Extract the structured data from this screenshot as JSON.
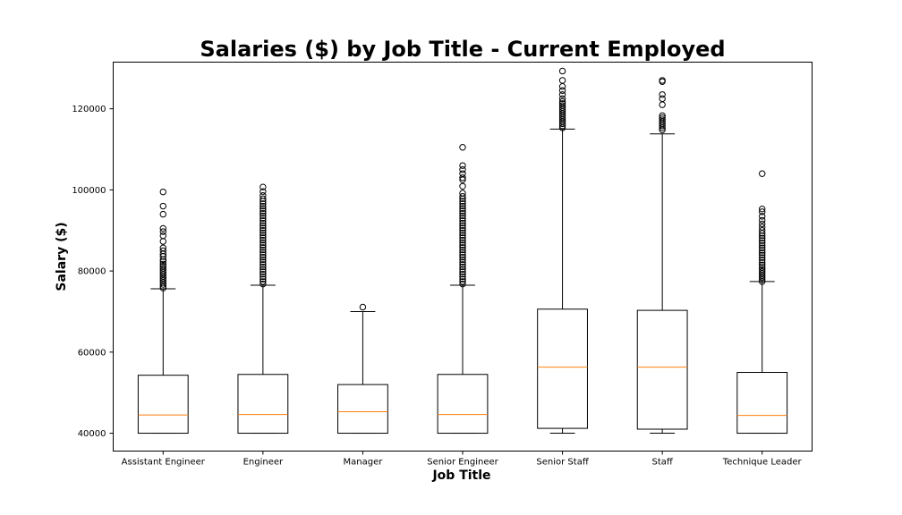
{
  "chart_data": {
    "type": "box",
    "title": "Salaries ($) by Job Title - Current Employed",
    "xlabel": "Job Title",
    "ylabel": "Salary ($)",
    "ylim": [
      35600,
      131500
    ],
    "yticks": [
      {
        "value": 40000,
        "label": "40000"
      },
      {
        "value": 60000,
        "label": "60000"
      },
      {
        "value": 80000,
        "label": "80000"
      },
      {
        "value": 100000,
        "label": "100000"
      },
      {
        "value": 120000,
        "label": "120000"
      }
    ],
    "grid": false,
    "colors": {
      "box": "#000000",
      "median": "#ff7f0e",
      "background": "#ffffff"
    },
    "series": [
      {
        "name": "Assistant Engineer",
        "min": 40000,
        "q1": 40000,
        "median": 44500,
        "q3": 54300,
        "whisker_high": 75600,
        "outliers": [
          75800,
          76200,
          76700,
          77200,
          77700,
          78200,
          78700,
          79200,
          79700,
          80200,
          80700,
          81200,
          81700,
          82300,
          82800,
          83600,
          84200,
          85000,
          85700,
          87300,
          88700,
          89700,
          90500,
          94000,
          96000,
          99500
        ]
      },
      {
        "name": "Engineer",
        "min": 40000,
        "q1": 40000,
        "median": 44600,
        "q3": 54500,
        "whisker_high": 76500,
        "outliers": [
          76800,
          77400,
          78000,
          78600,
          79200,
          79800,
          80400,
          81000,
          81600,
          82200,
          82800,
          83400,
          84000,
          84600,
          85200,
          85800,
          86400,
          87000,
          87600,
          88200,
          88800,
          89400,
          90000,
          90600,
          91200,
          91800,
          92400,
          93000,
          93600,
          94200,
          94800,
          95400,
          96000,
          96600,
          97200,
          97800,
          98600,
          99600,
          100700
        ]
      },
      {
        "name": "Manager",
        "min": 40000,
        "q1": 40000,
        "median": 45300,
        "q3": 52000,
        "whisker_high": 70000,
        "outliers": [
          71100
        ]
      },
      {
        "name": "Senior Engineer",
        "min": 40000,
        "q1": 40000,
        "median": 44600,
        "q3": 54500,
        "whisker_high": 76500,
        "outliers": [
          76800,
          77400,
          78000,
          78600,
          79200,
          79800,
          80400,
          81000,
          81600,
          82200,
          82800,
          83400,
          84000,
          84600,
          85200,
          85800,
          86400,
          87000,
          87600,
          88200,
          88800,
          89400,
          90000,
          90600,
          91200,
          91800,
          92400,
          93000,
          93600,
          94200,
          94800,
          95400,
          96000,
          96600,
          97200,
          97800,
          98400,
          99200,
          100900,
          102500,
          103000,
          104000,
          105000,
          106000,
          110500
        ]
      },
      {
        "name": "Senior Staff",
        "min": 40000,
        "q1": 41200,
        "median": 56300,
        "q3": 70600,
        "whisker_high": 115000,
        "outliers": [
          115300,
          115800,
          116300,
          116800,
          117300,
          117800,
          118300,
          118800,
          119300,
          119800,
          120300,
          120800,
          121300,
          121800,
          122500,
          123500,
          124500,
          125500,
          127000,
          129300
        ]
      },
      {
        "name": "Staff",
        "min": 40000,
        "q1": 41000,
        "median": 56300,
        "q3": 70300,
        "whisker_high": 113800,
        "outliers": [
          114800,
          115300,
          115800,
          116300,
          116800,
          117300,
          117800,
          118300,
          121000,
          122500,
          123500,
          126700,
          127000
        ]
      },
      {
        "name": "Technique Leader",
        "min": 40000,
        "q1": 40000,
        "median": 44400,
        "q3": 55000,
        "whisker_high": 77400,
        "outliers": [
          77400,
          77900,
          78400,
          78900,
          79400,
          79900,
          80400,
          80900,
          81500,
          82100,
          82700,
          83300,
          83900,
          84500,
          85100,
          85700,
          86300,
          86900,
          87500,
          88100,
          88700,
          89300,
          90000,
          90800,
          91600,
          92500,
          93500,
          94600,
          95300,
          104000
        ]
      }
    ]
  }
}
